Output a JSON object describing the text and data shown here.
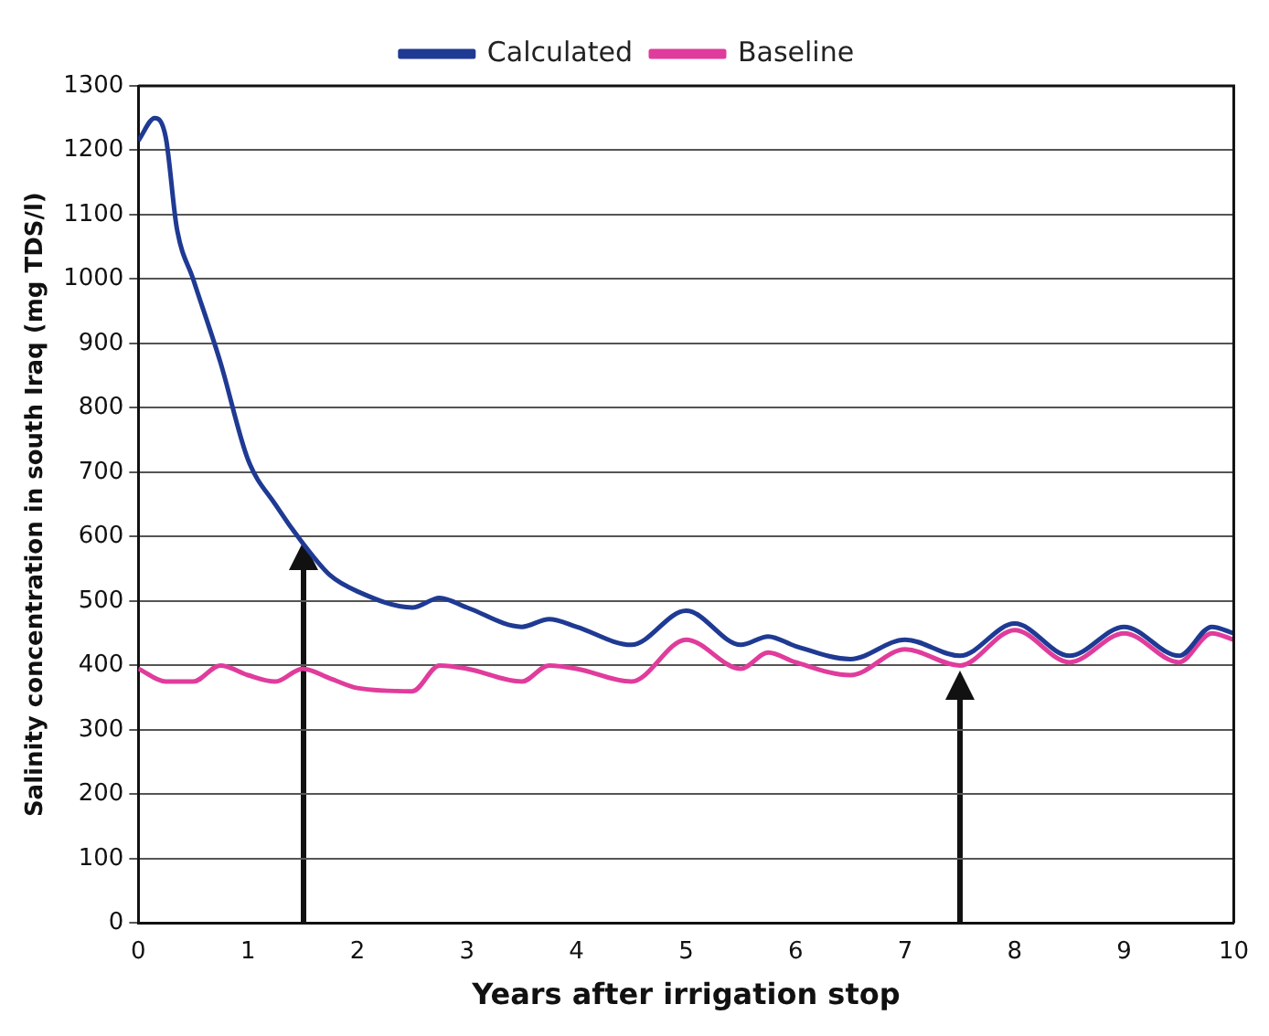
{
  "chart_data": {
    "type": "line",
    "xlabel": "Years after irrigation stop",
    "ylabel": "Salinity concentration in south Iraq (mg TDS/l)",
    "xlim": [
      0,
      10
    ],
    "xticks": [
      0,
      1,
      2,
      3,
      4,
      5,
      6,
      7,
      8,
      9,
      10
    ],
    "ylim": [
      0,
      1300
    ],
    "yticks": [
      0,
      100,
      200,
      300,
      400,
      500,
      600,
      700,
      800,
      900,
      1000,
      1100,
      1200,
      1300
    ],
    "grid": "y",
    "legend": "top",
    "marker": "none",
    "line_style": "solid",
    "series": [
      {
        "name": "Calculated",
        "color": "#1f3a93",
        "x": [
          0,
          0.15,
          0.25,
          0.35,
          0.5,
          0.75,
          1,
          1.25,
          1.5,
          1.75,
          2,
          2.5,
          2.75,
          3,
          3.5,
          3.75,
          4,
          4.5,
          5,
          5.5,
          5.75,
          6,
          6.5,
          7,
          7.5,
          8,
          8.5,
          9,
          9.5,
          9.8,
          10
        ],
        "values": [
          1215,
          1250,
          1220,
          1080,
          1000,
          870,
          720,
          650,
          590,
          540,
          515,
          490,
          505,
          490,
          460,
          472,
          460,
          432,
          485,
          432,
          445,
          430,
          410,
          440,
          415,
          465,
          415,
          460,
          415,
          460,
          450
        ]
      },
      {
        "name": "Baseline",
        "color": "#e03c9c",
        "x": [
          0,
          0.25,
          0.5,
          0.75,
          1,
          1.25,
          1.5,
          1.75,
          2,
          2.5,
          2.75,
          3,
          3.5,
          3.75,
          4,
          4.5,
          5,
          5.5,
          5.75,
          6,
          6.5,
          7,
          7.5,
          8,
          8.5,
          9,
          9.5,
          9.8,
          10
        ],
        "values": [
          395,
          375,
          375,
          400,
          385,
          375,
          395,
          380,
          365,
          360,
          400,
          395,
          375,
          400,
          395,
          375,
          440,
          395,
          420,
          405,
          385,
          425,
          400,
          455,
          405,
          450,
          405,
          450,
          440
        ]
      }
    ]
  }
}
